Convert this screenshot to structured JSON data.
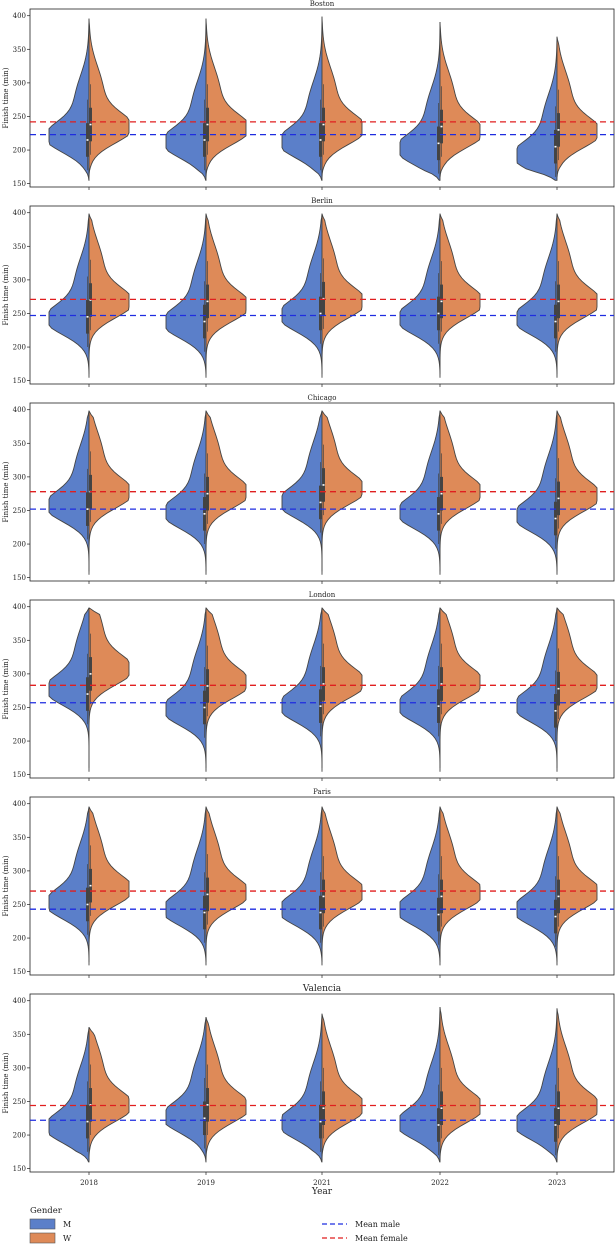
{
  "figure": {
    "xlabel": "Year",
    "legend": {
      "title": "Gender",
      "items": [
        {
          "label": "M",
          "color": "#5b7fc9"
        },
        {
          "label": "W",
          "color": "#de8a58"
        }
      ],
      "lines": [
        {
          "label": "Mean male",
          "color": "#1f2de0"
        },
        {
          "label": "Mean female",
          "color": "#e01f1f"
        }
      ]
    }
  },
  "chart_data": [
    {
      "type": "violin",
      "title": "Boston",
      "xlabel": "",
      "ylabel": "Finish time (min)",
      "categories": [
        "2018",
        "2019",
        "2021",
        "2022",
        "2023"
      ],
      "ylim": [
        145,
        410
      ],
      "yticks": [
        150,
        200,
        250,
        300,
        350,
        400
      ],
      "mean_male": 223,
      "mean_female": 242,
      "series": [
        {
          "name": "M",
          "min": [
            155,
            155,
            155,
            155,
            155
          ],
          "max": [
            395,
            395,
            398,
            390,
            368
          ],
          "mode": [
            218,
            210,
            210,
            200,
            190
          ],
          "median": [
            215,
            215,
            215,
            210,
            205
          ]
        },
        {
          "name": "W",
          "min": [
            160,
            160,
            160,
            160,
            160
          ],
          "max": [
            395,
            395,
            398,
            390,
            368
          ],
          "mode": [
            232,
            230,
            230,
            225,
            225
          ],
          "median": [
            238,
            238,
            238,
            235,
            230
          ]
        }
      ]
    },
    {
      "type": "violin",
      "title": "Berlin",
      "xlabel": "",
      "ylabel": "Finish time (min)",
      "categories": [
        "2018",
        "2019",
        "2021",
        "2022",
        "2023"
      ],
      "ylim": [
        145,
        410
      ],
      "yticks": [
        150,
        200,
        250,
        300,
        350,
        400
      ],
      "mean_male": 247,
      "mean_female": 271,
      "series": [
        {
          "name": "M",
          "min": [
            155,
            155,
            155,
            155,
            155
          ],
          "max": [
            398,
            398,
            398,
            398,
            398
          ],
          "mode": [
            240,
            235,
            245,
            240,
            240
          ],
          "median": [
            245,
            238,
            250,
            250,
            238
          ]
        },
        {
          "name": "W",
          "min": [
            160,
            160,
            160,
            160,
            160
          ],
          "max": [
            398,
            398,
            398,
            398,
            398
          ],
          "mode": [
            265,
            260,
            265,
            265,
            265
          ],
          "median": [
            270,
            268,
            272,
            268,
            268
          ]
        }
      ]
    },
    {
      "type": "violin",
      "title": "Chicago",
      "xlabel": "",
      "ylabel": "Finish time (min)",
      "categories": [
        "2018",
        "2019",
        "2021",
        "2022",
        "2023"
      ],
      "ylim": [
        145,
        410
      ],
      "yticks": [
        150,
        200,
        250,
        300,
        350,
        400
      ],
      "mean_male": 252,
      "mean_female": 278,
      "series": [
        {
          "name": "M",
          "min": [
            155,
            155,
            155,
            155,
            155
          ],
          "max": [
            398,
            398,
            398,
            398,
            398
          ],
          "mode": [
            255,
            245,
            260,
            245,
            240
          ],
          "median": [
            252,
            245,
            262,
            245,
            238
          ]
        },
        {
          "name": "W",
          "min": [
            160,
            160,
            160,
            160,
            160
          ],
          "max": [
            398,
            398,
            398,
            398,
            398
          ],
          "mode": [
            275,
            275,
            280,
            275,
            270
          ],
          "median": [
            278,
            275,
            288,
            275,
            268
          ]
        }
      ]
    },
    {
      "type": "violin",
      "title": "London",
      "xlabel": "",
      "ylabel": "Finish time (min)",
      "categories": [
        "2018",
        "2019",
        "2021",
        "2022",
        "2023"
      ],
      "ylim": [
        145,
        410
      ],
      "yticks": [
        150,
        200,
        250,
        300,
        350,
        400
      ],
      "mean_male": 257,
      "mean_female": 283,
      "series": [
        {
          "name": "M",
          "min": [
            155,
            155,
            155,
            155,
            155
          ],
          "max": [
            398,
            398,
            398,
            398,
            398
          ],
          "mode": [
            275,
            245,
            250,
            250,
            250
          ],
          "median": [
            270,
            250,
            252,
            252,
            245
          ]
        },
        {
          "name": "W",
          "min": [
            160,
            160,
            160,
            160,
            160
          ],
          "max": [
            398,
            398,
            398,
            398,
            398
          ],
          "mode": [
            305,
            285,
            285,
            285,
            285
          ],
          "median": [
            300,
            282,
            285,
            285,
            278
          ]
        }
      ]
    },
    {
      "type": "violin",
      "title": "Paris",
      "xlabel": "",
      "ylabel": "Finish time (min)",
      "categories": [
        "2018",
        "2019",
        "2021",
        "2022",
        "2023"
      ],
      "ylim": [
        145,
        410
      ],
      "yticks": [
        150,
        200,
        250,
        300,
        350,
        400
      ],
      "mean_male": 243,
      "mean_female": 270,
      "series": [
        {
          "name": "M",
          "min": [
            160,
            160,
            160,
            160,
            160
          ],
          "max": [
            395,
            395,
            395,
            395,
            395
          ],
          "mode": [
            250,
            240,
            240,
            240,
            240
          ],
          "median": [
            250,
            238,
            238,
            235,
            232
          ]
        },
        {
          "name": "W",
          "min": [
            165,
            165,
            165,
            165,
            165
          ],
          "max": [
            395,
            395,
            395,
            395,
            395
          ],
          "mode": [
            270,
            265,
            265,
            265,
            265
          ],
          "median": [
            278,
            265,
            262,
            262,
            262
          ]
        }
      ]
    },
    {
      "type": "violin",
      "title": "Valencia",
      "xlabel": "Year",
      "ylabel": "Finish time (min)",
      "categories": [
        "2018",
        "2019",
        "2021",
        "2022",
        "2023"
      ],
      "ylim": [
        145,
        410
      ],
      "yticks": [
        150,
        200,
        250,
        300,
        350,
        400
      ],
      "mean_male": 222,
      "mean_female": 244,
      "series": [
        {
          "name": "M",
          "min": [
            160,
            160,
            160,
            160,
            160
          ],
          "max": [
            360,
            375,
            380,
            390,
            388
          ],
          "mode": [
            210,
            225,
            215,
            215,
            215
          ],
          "median": [
            220,
            225,
            220,
            215,
            215
          ]
        },
        {
          "name": "W",
          "min": [
            163,
            163,
            163,
            163,
            163
          ],
          "max": [
            360,
            375,
            380,
            390,
            388
          ],
          "mode": [
            242,
            240,
            240,
            240,
            240
          ],
          "median": [
            245,
            245,
            240,
            240,
            240
          ]
        }
      ]
    }
  ]
}
